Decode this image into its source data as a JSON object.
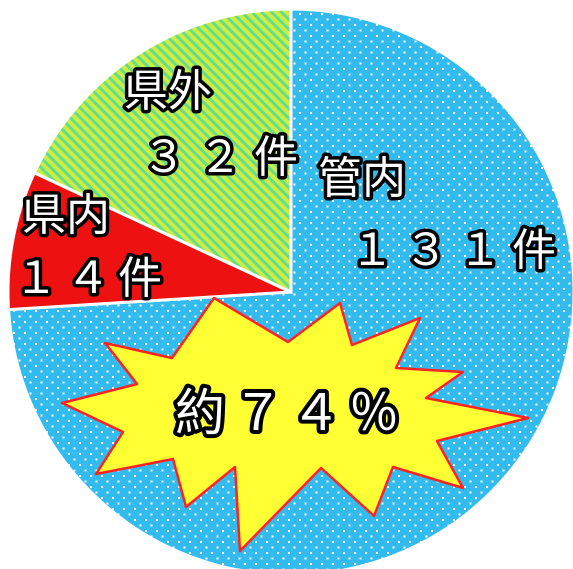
{
  "chart_data": {
    "type": "pie",
    "slices": [
      {
        "name": "管内",
        "value": 131,
        "label": "１３１件",
        "color": "#33bbee"
      },
      {
        "name": "県内",
        "value": 14,
        "label": "１４件",
        "color": "#ee1111"
      },
      {
        "name": "県外",
        "value": 32,
        "label": "３２件",
        "color": "#ccee44"
      }
    ],
    "annotation": "約７４％",
    "colors": {
      "dot_pattern": "#ffffff",
      "stripe_pattern": "#66dd88",
      "burst_fill": "#ffff33",
      "burst_stroke": "#ff2222"
    }
  }
}
